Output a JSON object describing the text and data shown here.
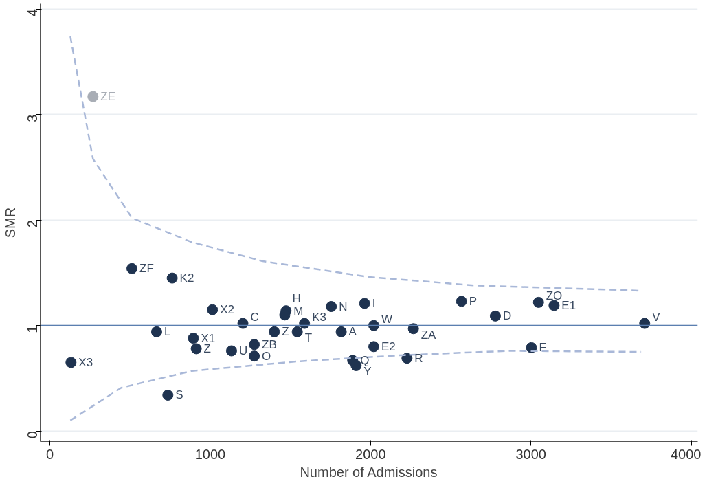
{
  "chart_data": {
    "type": "scatter",
    "xlabel": "Number of Admissions",
    "ylabel": "SMR",
    "xlim": [
      -60,
      4040
    ],
    "ylim": [
      -0.1,
      4.05
    ],
    "xticks": [
      0,
      1000,
      2000,
      3000,
      4000
    ],
    "yticks": [
      0,
      1,
      2,
      3,
      4
    ],
    "grid": "y",
    "marker": "circle",
    "series": [
      {
        "color": "#1f3350",
        "x": [
          512,
          763,
          1014,
          1473,
          1465,
          1204,
          1588,
          1400,
          1543,
          1817,
          1755,
          1963,
          2020,
          2267,
          2020,
          1888,
          1910,
          2227,
          2567,
          2778,
          3047,
          3144,
          3709,
          3003,
          666,
          895,
          913,
          1133,
          1275,
          1275,
          132,
          736
        ],
        "values": [
          1.54,
          1.45,
          1.15,
          1.14,
          1.1,
          1.02,
          1.02,
          0.94,
          0.94,
          0.94,
          1.18,
          1.21,
          1.0,
          0.97,
          0.8,
          0.67,
          0.62,
          0.69,
          1.23,
          1.09,
          1.22,
          1.19,
          1.02,
          0.79,
          0.94,
          0.88,
          0.78,
          0.76,
          0.82,
          0.71,
          0.65,
          0.34
        ]
      },
      {
        "color": "#a8adb5",
        "x": [
          269
        ],
        "values": [
          3.17
        ]
      },
      {
        "type": "line",
        "line_style": "dashed",
        "marker": "none",
        "color": "#a9b8d8",
        "x": [
          128,
          269,
          512,
          886,
          1327,
          1989,
          2650,
          3687
        ],
        "values": [
          3.74,
          2.58,
          2.02,
          1.79,
          1.61,
          1.46,
          1.38,
          1.33
        ]
      },
      {
        "type": "line",
        "line_style": "dashed",
        "marker": "none",
        "color": "#a9b8d8",
        "x": [
          128,
          445,
          886,
          1548,
          2209,
          2871,
          3687
        ],
        "values": [
          0.1,
          0.41,
          0.57,
          0.66,
          0.72,
          0.76,
          0.75
        ]
      }
    ],
    "ref_lines": [
      {
        "axis": "y",
        "value": 1,
        "color": "#5b7fb0"
      }
    ],
    "annotations": [
      {
        "text": "ZF",
        "x": 512,
        "y": 1.54
      },
      {
        "text": "K2",
        "x": 763,
        "y": 1.45
      },
      {
        "text": "X2",
        "x": 1014,
        "y": 1.15
      },
      {
        "text": "M",
        "x": 1473,
        "y": 1.14
      },
      {
        "text": "H",
        "x": 1465,
        "y": 1.1
      },
      {
        "text": "C",
        "x": 1204,
        "y": 1.02
      },
      {
        "text": "K3",
        "x": 1588,
        "y": 1.02
      },
      {
        "text": "Z",
        "x": 1400,
        "y": 0.94
      },
      {
        "text": "T",
        "x": 1543,
        "y": 0.94
      },
      {
        "text": "A",
        "x": 1817,
        "y": 0.94
      },
      {
        "text": "N",
        "x": 1755,
        "y": 1.18
      },
      {
        "text": "I",
        "x": 1963,
        "y": 1.21
      },
      {
        "text": "W",
        "x": 2020,
        "y": 1.0
      },
      {
        "text": "ZA",
        "x": 2267,
        "y": 0.97
      },
      {
        "text": "E2",
        "x": 2020,
        "y": 0.8
      },
      {
        "text": "Q",
        "x": 1888,
        "y": 0.67
      },
      {
        "text": "Y",
        "x": 1910,
        "y": 0.62
      },
      {
        "text": "R",
        "x": 2227,
        "y": 0.69
      },
      {
        "text": "P",
        "x": 2567,
        "y": 1.23
      },
      {
        "text": "D",
        "x": 2778,
        "y": 1.09
      },
      {
        "text": "ZO",
        "x": 3047,
        "y": 1.22
      },
      {
        "text": "E1",
        "x": 3144,
        "y": 1.19
      },
      {
        "text": "V",
        "x": 3709,
        "y": 1.02
      },
      {
        "text": "F",
        "x": 3003,
        "y": 0.79
      },
      {
        "text": "L",
        "x": 666,
        "y": 0.94
      },
      {
        "text": "X1",
        "x": 895,
        "y": 0.88
      },
      {
        "text": "Z",
        "x": 913,
        "y": 0.78
      },
      {
        "text": "U",
        "x": 1133,
        "y": 0.76
      },
      {
        "text": "ZB",
        "x": 1275,
        "y": 0.82
      },
      {
        "text": "O",
        "x": 1275,
        "y": 0.71
      },
      {
        "text": "X3",
        "x": 132,
        "y": 0.65
      },
      {
        "text": "S",
        "x": 736,
        "y": 0.34
      },
      {
        "text": "ZE",
        "x": 269,
        "y": 3.17
      }
    ]
  }
}
